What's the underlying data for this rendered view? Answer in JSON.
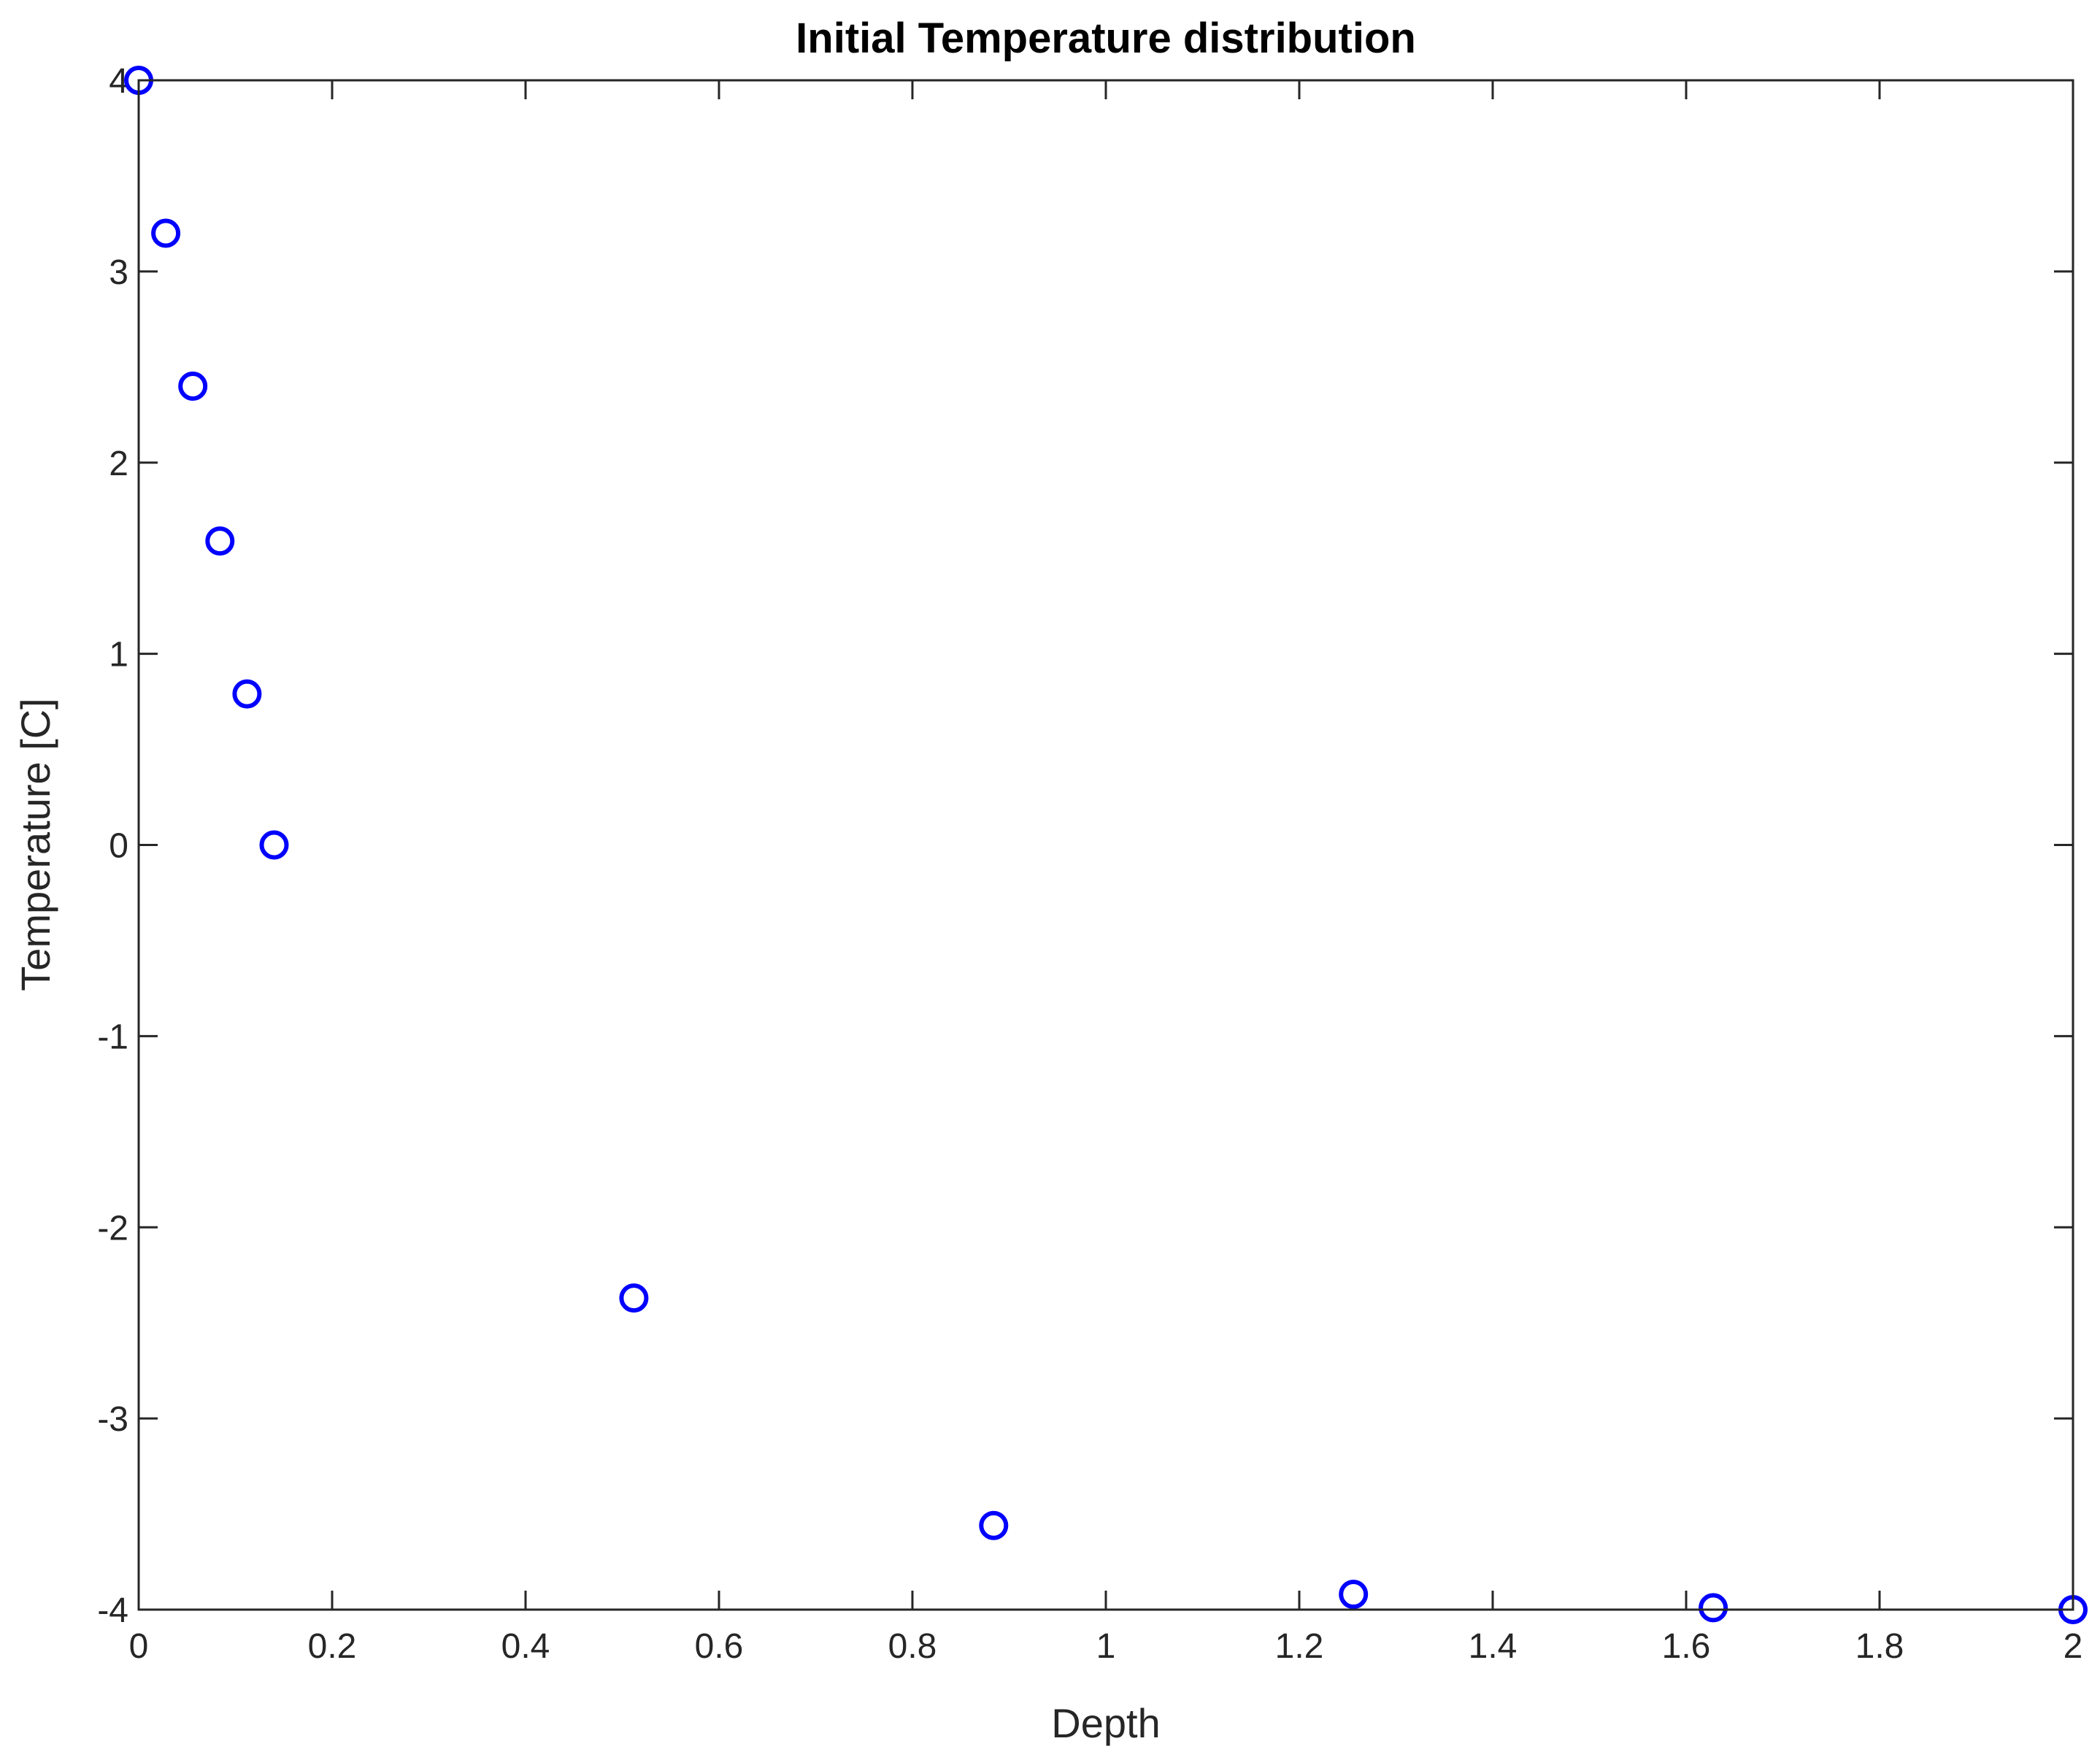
{
  "chart_data": {
    "type": "scatter",
    "title": "Initial Temperature distribution",
    "xlabel": "Depth",
    "ylabel": "Temperature [C]",
    "xlim": [
      0,
      2
    ],
    "ylim": [
      -4,
      4
    ],
    "xticks": [
      0,
      0.2,
      0.4,
      0.6,
      0.8,
      1,
      1.2,
      1.4,
      1.6,
      1.8,
      2
    ],
    "xtick_labels": [
      "0",
      "0.2",
      "0.4",
      "0.6",
      "0.8",
      "1",
      "1.2",
      "1.4",
      "1.6",
      "1.8",
      "2"
    ],
    "yticks": [
      -4,
      -3,
      -2,
      -1,
      0,
      1,
      2,
      3,
      4
    ],
    "ytick_labels": [
      "-4",
      "-3",
      "-2",
      "-1",
      "0",
      "1",
      "2",
      "3",
      "4"
    ],
    "grid": false,
    "marker": "circle-open",
    "marker_color": "#0000ff",
    "x": [
      0.0,
      0.028,
      0.056,
      0.084,
      0.112,
      0.14,
      0.512,
      0.884,
      1.256,
      1.628,
      2.0
    ],
    "y": [
      4.0,
      3.2,
      2.4,
      1.59,
      0.79,
      0.0,
      -2.37,
      -3.56,
      -3.92,
      -3.99,
      -4.0
    ]
  }
}
